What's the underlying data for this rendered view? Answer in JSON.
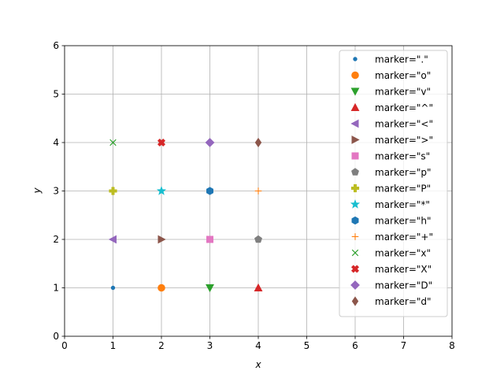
{
  "chart_data": {
    "type": "scatter",
    "xlabel": "x",
    "ylabel": "y",
    "xlim": [
      0,
      8
    ],
    "ylim": [
      0,
      6
    ],
    "xticks": [
      "0",
      "1",
      "2",
      "3",
      "4",
      "5",
      "6",
      "7",
      "8"
    ],
    "yticks": [
      "0",
      "1",
      "2",
      "3",
      "4",
      "5",
      "6"
    ],
    "grid": true,
    "legend_position": "top-right",
    "series": [
      {
        "name": "marker=\".\"",
        "marker": "point",
        "color": "#1f77b4",
        "x": 1,
        "y": 1
      },
      {
        "name": "marker=\"o\"",
        "marker": "circle",
        "color": "#ff7f0e",
        "x": 2,
        "y": 1
      },
      {
        "name": "marker=\"v\"",
        "marker": "triangle-down",
        "color": "#2ca02c",
        "x": 3,
        "y": 1
      },
      {
        "name": "marker=\"^\"",
        "marker": "triangle-up",
        "color": "#d62728",
        "x": 4,
        "y": 1
      },
      {
        "name": "marker=\"<\"",
        "marker": "triangle-left",
        "color": "#9467bd",
        "x": 1,
        "y": 2
      },
      {
        "name": "marker=\">\"",
        "marker": "triangle-right",
        "color": "#8c564b",
        "x": 2,
        "y": 2
      },
      {
        "name": "marker=\"s\"",
        "marker": "square",
        "color": "#e377c2",
        "x": 3,
        "y": 2
      },
      {
        "name": "marker=\"p\"",
        "marker": "pentagon",
        "color": "#7f7f7f",
        "x": 4,
        "y": 2
      },
      {
        "name": "marker=\"P\"",
        "marker": "plus-filled",
        "color": "#bcbd22",
        "x": 1,
        "y": 3
      },
      {
        "name": "marker=\"*\"",
        "marker": "star",
        "color": "#17becf",
        "x": 2,
        "y": 3
      },
      {
        "name": "marker=\"h\"",
        "marker": "hexagon",
        "color": "#1f77b4",
        "x": 3,
        "y": 3
      },
      {
        "name": "marker=\"+\"",
        "marker": "plus",
        "color": "#ff7f0e",
        "x": 4,
        "y": 3
      },
      {
        "name": "marker=\"x\"",
        "marker": "x",
        "color": "#2ca02c",
        "x": 1,
        "y": 4
      },
      {
        "name": "marker=\"X\"",
        "marker": "x-filled",
        "color": "#d62728",
        "x": 2,
        "y": 4
      },
      {
        "name": "marker=\"D\"",
        "marker": "diamond",
        "color": "#9467bd",
        "x": 3,
        "y": 4
      },
      {
        "name": "marker=\"d\"",
        "marker": "thin-diamond",
        "color": "#8c564b",
        "x": 4,
        "y": 4
      }
    ]
  }
}
